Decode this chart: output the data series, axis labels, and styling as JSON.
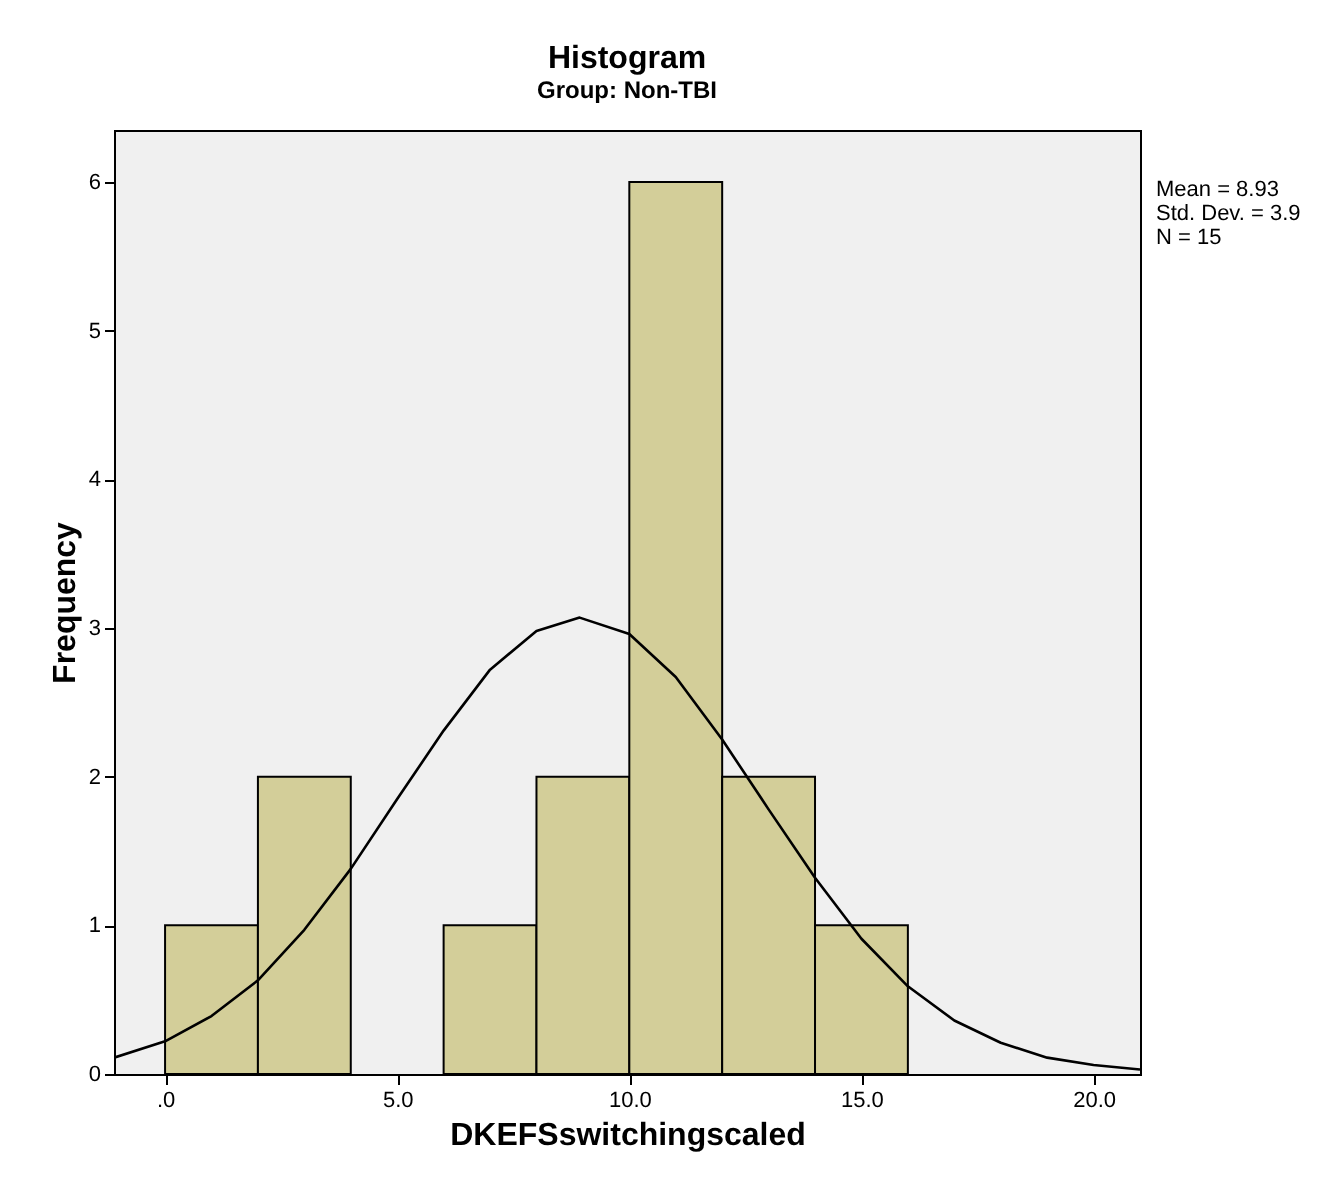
{
  "chart_data": {
    "type": "histogram",
    "title": "Histogram",
    "subtitle": "Group: Non-TBI",
    "xlabel": "DKEFSswitchingscaled",
    "ylabel": "Frequency",
    "bins": [
      0,
      2,
      4,
      6,
      8,
      10,
      12,
      14,
      16
    ],
    "values": [
      1,
      2,
      0,
      1,
      2,
      6,
      2,
      1
    ],
    "color": "#d3ce99",
    "series": [
      {
        "type": "line",
        "color": "#000000",
        "x": [
          -1.1,
          0,
          1,
          2,
          3,
          4,
          5,
          6,
          7,
          8,
          8.93,
          10,
          11,
          12,
          13,
          14,
          15,
          16,
          17,
          18,
          19,
          20,
          21
        ],
        "values": [
          0.11,
          0.22,
          0.39,
          0.63,
          0.97,
          1.38,
          1.85,
          2.31,
          2.72,
          2.98,
          3.07,
          2.96,
          2.67,
          2.25,
          1.78,
          1.32,
          0.91,
          0.59,
          0.36,
          0.21,
          0.11,
          0.06,
          0.03
        ]
      }
    ],
    "xlim": [
      -1.1,
      21
    ],
    "xticks": [
      {
        "value": 0,
        "label": ".0"
      },
      {
        "value": 5,
        "label": "5.0"
      },
      {
        "value": 10,
        "label": "10.0"
      },
      {
        "value": 15,
        "label": "15.0"
      },
      {
        "value": 20,
        "label": "20.0"
      }
    ],
    "ylim": [
      0,
      6.35
    ],
    "yticks": [
      0,
      1,
      2,
      3,
      4,
      5,
      6
    ],
    "annotations": [
      "Mean = 8.93",
      "Std. Dev. = 3.9",
      "N = 15"
    ]
  }
}
